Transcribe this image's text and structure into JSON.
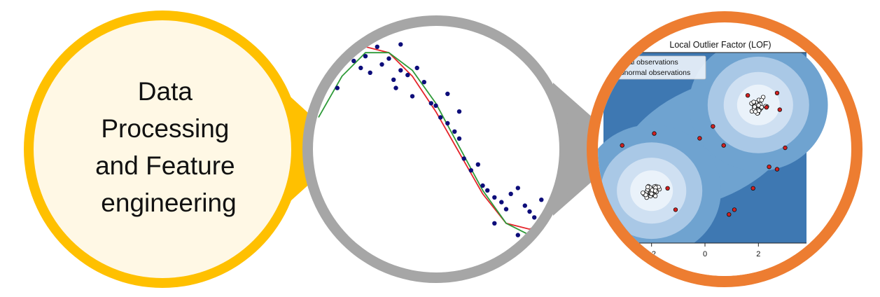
{
  "colors": {
    "yellow_ring": "#FFC000",
    "yellow_fill": "#FFF8E5",
    "gray_ring": "#A6A6A6",
    "orange_ring": "#ED7D31",
    "scatter_point": "#0D0D7A",
    "fit_red": "#E5232A",
    "fit_green": "#2E9A38",
    "lof_dark": "#3E78B2",
    "lof_mid": "#6FA3D0",
    "lof_light": "#A9C8E6",
    "lof_lighter": "#CFE0F2",
    "lof_center": "#EAF2FA",
    "outlier_point": "#D32020"
  },
  "bubble_1": {
    "lines": [
      "Data",
      "Processing",
      "and Feature",
      "engineering"
    ]
  },
  "bubble_3": {
    "title": "Local Outlier Factor (LOF)",
    "legend": [
      "ormal observations",
      "abnormal observations"
    ],
    "xtick_labels": [
      "−2",
      "0",
      "2"
    ]
  },
  "chart_data": [
    {
      "type": "scatter",
      "title": "",
      "xlabel": "",
      "ylabel": "",
      "series": [
        {
          "kind": "points",
          "points": [
            [
              0.05,
              0.62
            ],
            [
              0.08,
              0.55
            ],
            [
              0.12,
              0.95
            ],
            [
              0.15,
              0.78
            ],
            [
              0.18,
              0.72
            ],
            [
              0.2,
              0.82
            ],
            [
              0.22,
              0.68
            ],
            [
              0.25,
              0.9
            ],
            [
              0.27,
              0.75
            ],
            [
              0.3,
              0.8
            ],
            [
              0.32,
              0.62
            ],
            [
              0.33,
              0.55
            ],
            [
              0.35,
              0.7
            ],
            [
              0.38,
              0.66
            ],
            [
              0.4,
              0.48
            ],
            [
              0.42,
              0.72
            ],
            [
              0.45,
              0.6
            ],
            [
              0.48,
              0.42
            ],
            [
              0.5,
              0.4
            ],
            [
              0.52,
              0.3
            ],
            [
              0.55,
              0.25
            ],
            [
              0.58,
              0.18
            ],
            [
              0.6,
              0.12
            ],
            [
              0.62,
              -0.05
            ],
            [
              0.65,
              -0.15
            ],
            [
              0.7,
              -0.28
            ],
            [
              0.72,
              -0.32
            ],
            [
              0.75,
              -0.38
            ],
            [
              0.78,
              -0.42
            ],
            [
              0.8,
              -0.48
            ],
            [
              0.82,
              -0.35
            ],
            [
              0.85,
              -0.3
            ],
            [
              0.88,
              -0.45
            ],
            [
              0.9,
              -0.5
            ],
            [
              0.92,
              -0.55
            ],
            [
              0.95,
              -0.4
            ],
            [
              0.98,
              -0.6
            ],
            [
              1.0,
              -0.65
            ],
            [
              0.35,
              0.92
            ],
            [
              0.55,
              0.5
            ],
            [
              0.6,
              0.35
            ],
            [
              0.68,
              -0.1
            ],
            [
              0.75,
              -0.6
            ],
            [
              0.85,
              -0.7
            ]
          ]
        },
        {
          "kind": "curve",
          "color": "red",
          "points": [
            [
              0,
              0.55
            ],
            [
              0.1,
              0.8
            ],
            [
              0.2,
              0.9
            ],
            [
              0.3,
              0.85
            ],
            [
              0.4,
              0.65
            ],
            [
              0.5,
              0.35
            ],
            [
              0.6,
              0.0
            ],
            [
              0.7,
              -0.35
            ],
            [
              0.8,
              -0.6
            ],
            [
              0.9,
              -0.65
            ],
            [
              1.0,
              -0.55
            ]
          ]
        },
        {
          "kind": "curve",
          "color": "green",
          "points": [
            [
              0,
              0.3
            ],
            [
              0.1,
              0.65
            ],
            [
              0.2,
              0.85
            ],
            [
              0.3,
              0.85
            ],
            [
              0.4,
              0.7
            ],
            [
              0.5,
              0.42
            ],
            [
              0.6,
              0.05
            ],
            [
              0.7,
              -0.32
            ],
            [
              0.8,
              -0.6
            ],
            [
              0.9,
              -0.7
            ],
            [
              1.0,
              -0.62
            ]
          ]
        }
      ]
    },
    {
      "type": "scatter",
      "title": "Local Outlier Factor (LOF)",
      "xlabel": "",
      "ylabel": "",
      "xlim": [
        -3.8,
        3.8
      ],
      "ylim": [
        -3.8,
        4.2
      ],
      "x_ticks": [
        -2,
        0,
        2
      ],
      "legend": {
        "placement": "top-left",
        "entries": [
          "ormal observations",
          "abnormal observations"
        ]
      },
      "clusters": [
        {
          "name": "normal",
          "center": [
            2.0,
            2.0
          ],
          "count": 40,
          "spread": 0.35
        },
        {
          "name": "normal",
          "center": [
            -2.0,
            -1.6
          ],
          "count": 40,
          "spread": 0.35
        }
      ],
      "outliers": [
        [
          -3.1,
          0.3
        ],
        [
          -1.9,
          0.8
        ],
        [
          -1.1,
          -2.4
        ],
        [
          -0.2,
          0.6
        ],
        [
          0.3,
          1.1
        ],
        [
          0.7,
          0.3
        ],
        [
          0.9,
          -2.6
        ],
        [
          1.1,
          -2.4
        ],
        [
          1.8,
          -1.5
        ],
        [
          2.4,
          -0.6
        ],
        [
          3.0,
          0.2
        ],
        [
          2.7,
          -0.7
        ],
        [
          2.7,
          2.5
        ],
        [
          2.8,
          1.8
        ],
        [
          -3.5,
          -2.8
        ],
        [
          -1.4,
          -1.5
        ],
        [
          1.6,
          2.4
        ],
        [
          2.3,
          1.9
        ]
      ]
    }
  ]
}
